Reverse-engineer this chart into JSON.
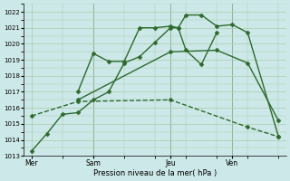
{
  "background_color": "#cce8e8",
  "grid_color": "#aaccaa",
  "line_color": "#2d6a2d",
  "marker_color": "#2d6a2d",
  "xlabel": "Pression niveau de la mer( hPa )",
  "ylim": [
    1013,
    1022.5
  ],
  "yticks": [
    1013,
    1014,
    1015,
    1016,
    1017,
    1018,
    1019,
    1020,
    1021,
    1022
  ],
  "xtick_labels": [
    "Mer",
    "Sam",
    "Jeu",
    "Ven"
  ],
  "xtick_positions": [
    0,
    4,
    9,
    13
  ],
  "series": [
    {
      "x": [
        0,
        1,
        2,
        3,
        4,
        5,
        6,
        7,
        8,
        9,
        9.5,
        10,
        11,
        12,
        13,
        14,
        16
      ],
      "y": [
        1013.3,
        1014.4,
        1015.6,
        1015.7,
        1016.5,
        1017.0,
        1018.8,
        1019.2,
        1020.1,
        1021.0,
        1021.0,
        1021.8,
        1021.8,
        1021.1,
        1021.2,
        1020.7,
        1014.2
      ],
      "linestyle": "-",
      "linewidth": 1.0,
      "marker": "D",
      "markersize": 2.5
    },
    {
      "x": [
        3,
        4,
        5,
        6,
        7,
        8,
        9,
        9.5,
        10,
        11,
        12
      ],
      "y": [
        1017.0,
        1019.4,
        1018.9,
        1018.9,
        1021.0,
        1021.0,
        1021.1,
        1021.0,
        1019.6,
        1018.7,
        1020.7
      ],
      "linestyle": "-",
      "linewidth": 1.0,
      "marker": "D",
      "markersize": 2.5
    },
    {
      "x": [
        3,
        9,
        12,
        14,
        16
      ],
      "y": [
        1016.5,
        1019.5,
        1019.6,
        1018.8,
        1015.2
      ],
      "linestyle": "-",
      "linewidth": 1.0,
      "marker": "D",
      "markersize": 2.5
    },
    {
      "x": [
        0,
        3,
        9,
        14,
        16
      ],
      "y": [
        1015.5,
        1016.4,
        1016.5,
        1014.8,
        1014.2
      ],
      "linestyle": "--",
      "linewidth": 1.0,
      "marker": "D",
      "markersize": 2.5
    }
  ],
  "vlines_x": [
    4,
    9,
    13
  ],
  "figsize": [
    3.2,
    2.0
  ],
  "dpi": 100
}
